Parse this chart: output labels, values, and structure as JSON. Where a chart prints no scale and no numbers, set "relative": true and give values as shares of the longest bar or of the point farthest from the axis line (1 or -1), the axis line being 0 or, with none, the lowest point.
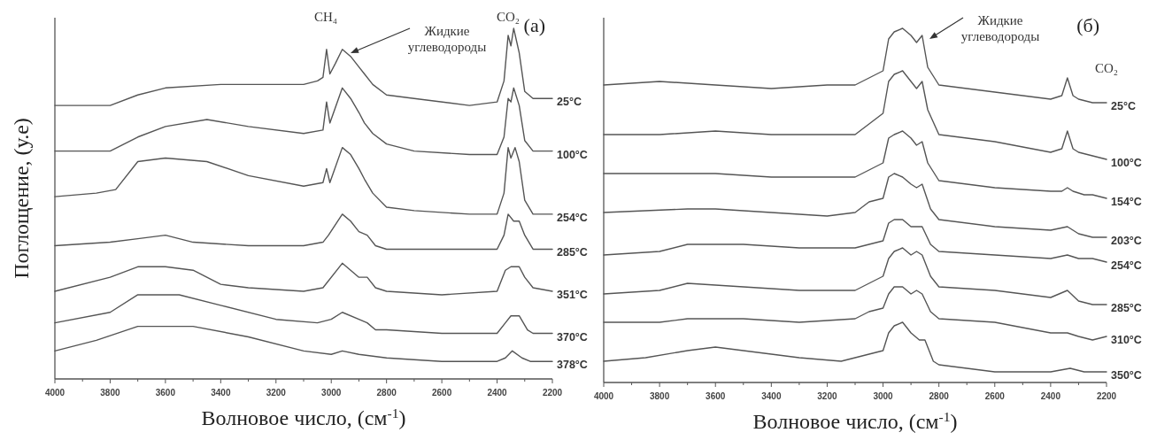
{
  "chart_data": [
    {
      "type": "line",
      "title": "(a)",
      "relative": true,
      "xlabel": "Волновое число, (см$^{-1}$)",
      "ylabel": "Поглощение, (у.е)",
      "xlim": [
        4000,
        2200
      ],
      "xticks": [
        4000,
        {
          "value": 3900,
          "label": null
        },
        3800,
        {
          "value": 3700,
          "label": null
        },
        3600,
        {
          "value": 3500,
          "label": null
        },
        3400,
        {
          "value": 3300,
          "label": null
        },
        3200,
        {
          "value": 3100,
          "label": null
        },
        3000,
        {
          "value": 2900,
          "label": null
        },
        2800,
        {
          "value": 2700,
          "label": null
        },
        2600,
        {
          "value": 2500,
          "label": null
        },
        2400,
        {
          "value": 2300,
          "label": null
        },
        2200
      ],
      "legend": false,
      "marker": "none",
      "line_style": "solid",
      "annotations": [
        "CH₄",
        "CO₂",
        "Жидкие углеводороды"
      ],
      "series": [
        {
          "name": "25°C",
          "color": "#555555",
          "x": [
            4000,
            3800,
            3700,
            3600,
            3400,
            3200,
            3100,
            3050,
            3030,
            3017,
            3005,
            2985,
            2960,
            2930,
            2900,
            2880,
            2850,
            2800,
            2700,
            2500,
            2400,
            2375,
            2360,
            2350,
            2340,
            2320,
            2300,
            2270,
            2200
          ],
          "values": [
            0.78,
            0.78,
            0.81,
            0.83,
            0.84,
            0.84,
            0.84,
            0.85,
            0.86,
            0.94,
            0.87,
            0.9,
            0.94,
            0.92,
            0.89,
            0.87,
            0.84,
            0.81,
            0.8,
            0.78,
            0.79,
            0.85,
            0.98,
            0.95,
            1.0,
            0.93,
            0.82,
            0.8,
            0.8
          ]
        },
        {
          "name": "100°C",
          "color": "#555555",
          "x": [
            4000,
            3800,
            3700,
            3600,
            3450,
            3300,
            3100,
            3030,
            3017,
            3005,
            2960,
            2930,
            2900,
            2880,
            2850,
            2800,
            2700,
            2500,
            2400,
            2375,
            2360,
            2350,
            2340,
            2320,
            2300,
            2270,
            2200
          ],
          "values": [
            0.65,
            0.65,
            0.69,
            0.72,
            0.74,
            0.72,
            0.7,
            0.71,
            0.79,
            0.73,
            0.83,
            0.8,
            0.76,
            0.73,
            0.7,
            0.67,
            0.65,
            0.64,
            0.64,
            0.69,
            0.8,
            0.79,
            0.83,
            0.78,
            0.68,
            0.65,
            0.65
          ]
        },
        {
          "name": "254°C",
          "color": "#555555",
          "x": [
            4000,
            3850,
            3780,
            3700,
            3600,
            3450,
            3300,
            3100,
            3030,
            3017,
            3005,
            2960,
            2930,
            2900,
            2880,
            2850,
            2800,
            2700,
            2500,
            2400,
            2375,
            2360,
            2350,
            2335,
            2320,
            2300,
            2270,
            2200
          ],
          "values": [
            0.52,
            0.53,
            0.54,
            0.62,
            0.63,
            0.62,
            0.58,
            0.55,
            0.56,
            0.6,
            0.56,
            0.66,
            0.64,
            0.6,
            0.57,
            0.53,
            0.49,
            0.48,
            0.47,
            0.47,
            0.53,
            0.66,
            0.63,
            0.66,
            0.62,
            0.51,
            0.47,
            0.47
          ]
        },
        {
          "name": "285°C",
          "color": "#555555",
          "x": [
            4000,
            3800,
            3700,
            3600,
            3500,
            3300,
            3100,
            3030,
            3010,
            2960,
            2930,
            2900,
            2870,
            2840,
            2800,
            2600,
            2400,
            2375,
            2360,
            2340,
            2320,
            2300,
            2270,
            2200
          ],
          "values": [
            0.38,
            0.39,
            0.4,
            0.41,
            0.39,
            0.38,
            0.38,
            0.39,
            0.41,
            0.47,
            0.45,
            0.42,
            0.41,
            0.38,
            0.37,
            0.37,
            0.37,
            0.41,
            0.47,
            0.45,
            0.45,
            0.41,
            0.37,
            0.37
          ]
        },
        {
          "name": "351°C",
          "color": "#555555",
          "x": [
            4000,
            3800,
            3700,
            3600,
            3500,
            3400,
            3300,
            3100,
            3030,
            2960,
            2930,
            2900,
            2870,
            2840,
            2800,
            2600,
            2400,
            2370,
            2350,
            2320,
            2300,
            2270,
            2200
          ],
          "values": [
            0.25,
            0.29,
            0.32,
            0.32,
            0.31,
            0.27,
            0.26,
            0.25,
            0.26,
            0.33,
            0.31,
            0.29,
            0.29,
            0.26,
            0.25,
            0.24,
            0.25,
            0.31,
            0.32,
            0.32,
            0.29,
            0.26,
            0.25
          ]
        },
        {
          "name": "370°C",
          "color": "#555555",
          "x": [
            4000,
            3800,
            3700,
            3550,
            3400,
            3200,
            3050,
            3000,
            2960,
            2900,
            2870,
            2840,
            2800,
            2600,
            2400,
            2370,
            2350,
            2320,
            2290,
            2270,
            2200
          ],
          "values": [
            0.16,
            0.19,
            0.24,
            0.24,
            0.21,
            0.17,
            0.16,
            0.17,
            0.19,
            0.17,
            0.16,
            0.14,
            0.14,
            0.13,
            0.13,
            0.16,
            0.18,
            0.18,
            0.14,
            0.13,
            0.13
          ]
        },
        {
          "name": "378°C",
          "color": "#555555",
          "x": [
            4000,
            3850,
            3700,
            3500,
            3300,
            3100,
            3000,
            2960,
            2900,
            2800,
            2600,
            2400,
            2370,
            2345,
            2310,
            2280,
            2200
          ],
          "values": [
            0.08,
            0.11,
            0.15,
            0.15,
            0.12,
            0.08,
            0.07,
            0.08,
            0.07,
            0.06,
            0.05,
            0.05,
            0.06,
            0.08,
            0.06,
            0.05,
            0.05
          ]
        }
      ]
    },
    {
      "type": "line",
      "title": "(б)",
      "relative": true,
      "xlabel": "Волновое число, (см$^{-1}$)",
      "xlim": [
        4000,
        2200
      ],
      "xticks": [
        4000,
        {
          "value": 3900,
          "label": null
        },
        3800,
        {
          "value": 3700,
          "label": null
        },
        3600,
        {
          "value": 3500,
          "label": null
        },
        3400,
        {
          "value": 3300,
          "label": null
        },
        3200,
        {
          "value": 3100,
          "label": null
        },
        3000,
        {
          "value": 2900,
          "label": null
        },
        2800,
        {
          "value": 2700,
          "label": null
        },
        2600,
        {
          "value": 2500,
          "label": null
        },
        2400,
        {
          "value": 2300,
          "label": null
        },
        2200
      ],
      "legend": false,
      "marker": "none",
      "line_style": "solid",
      "annotations": [
        "Жидкие углеводороды",
        "CO₂"
      ],
      "series": [
        {
          "name": "25°C",
          "color": "#555555",
          "x": [
            4000,
            3800,
            3600,
            3400,
            3200,
            3100,
            3050,
            3000,
            2980,
            2960,
            2930,
            2900,
            2880,
            2860,
            2840,
            2800,
            2600,
            2400,
            2360,
            2340,
            2320,
            2300,
            2250,
            2200
          ],
          "values": [
            0.84,
            0.85,
            0.84,
            0.83,
            0.84,
            0.84,
            0.86,
            0.88,
            0.97,
            0.99,
            1.0,
            0.98,
            0.96,
            0.98,
            0.89,
            0.84,
            0.82,
            0.8,
            0.81,
            0.86,
            0.81,
            0.8,
            0.79,
            0.79
          ]
        },
        {
          "name": "100°C",
          "color": "#555555",
          "x": [
            4000,
            3800,
            3600,
            3400,
            3200,
            3100,
            3050,
            3000,
            2980,
            2960,
            2930,
            2900,
            2880,
            2860,
            2840,
            2800,
            2600,
            2400,
            2360,
            2340,
            2320,
            2300,
            2250,
            2200
          ],
          "values": [
            0.7,
            0.7,
            0.71,
            0.7,
            0.7,
            0.7,
            0.73,
            0.76,
            0.85,
            0.87,
            0.88,
            0.85,
            0.83,
            0.85,
            0.77,
            0.7,
            0.68,
            0.65,
            0.66,
            0.71,
            0.66,
            0.65,
            0.64,
            0.63
          ]
        },
        {
          "name": "154°C",
          "color": "#555555",
          "x": [
            4000,
            3800,
            3600,
            3400,
            3200,
            3100,
            3050,
            3000,
            2980,
            2960,
            2930,
            2900,
            2880,
            2860,
            2840,
            2800,
            2600,
            2400,
            2360,
            2340,
            2320,
            2280,
            2250,
            2200
          ],
          "values": [
            0.59,
            0.59,
            0.59,
            0.58,
            0.58,
            0.58,
            0.6,
            0.62,
            0.69,
            0.7,
            0.71,
            0.69,
            0.67,
            0.68,
            0.62,
            0.57,
            0.55,
            0.54,
            0.54,
            0.55,
            0.54,
            0.53,
            0.53,
            0.52
          ]
        },
        {
          "name": "203°C",
          "color": "#555555",
          "x": [
            4000,
            3700,
            3600,
            3400,
            3200,
            3100,
            3050,
            3000,
            2980,
            2960,
            2930,
            2900,
            2880,
            2860,
            2830,
            2800,
            2600,
            2400,
            2340,
            2300,
            2250,
            2200
          ],
          "values": [
            0.48,
            0.49,
            0.49,
            0.48,
            0.47,
            0.48,
            0.51,
            0.52,
            0.58,
            0.59,
            0.58,
            0.56,
            0.55,
            0.56,
            0.49,
            0.46,
            0.44,
            0.43,
            0.44,
            0.42,
            0.41,
            0.41
          ]
        },
        {
          "name": "254°C",
          "color": "#555555",
          "x": [
            4000,
            3800,
            3700,
            3500,
            3300,
            3100,
            3050,
            3000,
            2980,
            2960,
            2930,
            2900,
            2880,
            2860,
            2830,
            2800,
            2600,
            2400,
            2340,
            2300,
            2250,
            2200
          ],
          "values": [
            0.36,
            0.37,
            0.39,
            0.39,
            0.38,
            0.38,
            0.39,
            0.4,
            0.45,
            0.46,
            0.46,
            0.44,
            0.44,
            0.44,
            0.39,
            0.37,
            0.36,
            0.35,
            0.36,
            0.35,
            0.35,
            0.34
          ]
        },
        {
          "name": "285°C",
          "color": "#555555",
          "x": [
            4000,
            3800,
            3700,
            3500,
            3300,
            3100,
            3050,
            3000,
            2980,
            2960,
            2930,
            2900,
            2880,
            2860,
            2830,
            2800,
            2600,
            2400,
            2340,
            2300,
            2250,
            2200
          ],
          "values": [
            0.25,
            0.26,
            0.28,
            0.27,
            0.26,
            0.26,
            0.28,
            0.3,
            0.35,
            0.37,
            0.38,
            0.36,
            0.37,
            0.36,
            0.3,
            0.27,
            0.26,
            0.24,
            0.26,
            0.23,
            0.22,
            0.22
          ]
        },
        {
          "name": "310°C",
          "color": "#555555",
          "x": [
            4000,
            3800,
            3700,
            3500,
            3300,
            3100,
            3050,
            3000,
            2980,
            2960,
            2930,
            2900,
            2880,
            2860,
            2830,
            2800,
            2600,
            2400,
            2340,
            2300,
            2250,
            2200
          ],
          "values": [
            0.17,
            0.17,
            0.18,
            0.18,
            0.17,
            0.18,
            0.2,
            0.21,
            0.25,
            0.27,
            0.27,
            0.25,
            0.26,
            0.25,
            0.2,
            0.18,
            0.17,
            0.14,
            0.14,
            0.13,
            0.12,
            0.13
          ]
        },
        {
          "name": "350°C",
          "color": "#555555",
          "x": [
            4000,
            3850,
            3700,
            3600,
            3500,
            3300,
            3150,
            3050,
            3000,
            2980,
            2960,
            2930,
            2900,
            2870,
            2850,
            2820,
            2800,
            2600,
            2400,
            2330,
            2280,
            2200
          ],
          "values": [
            0.06,
            0.07,
            0.09,
            0.1,
            0.09,
            0.07,
            0.06,
            0.08,
            0.09,
            0.14,
            0.16,
            0.17,
            0.14,
            0.12,
            0.12,
            0.06,
            0.05,
            0.03,
            0.03,
            0.04,
            0.03,
            0.03
          ]
        }
      ]
    }
  ]
}
